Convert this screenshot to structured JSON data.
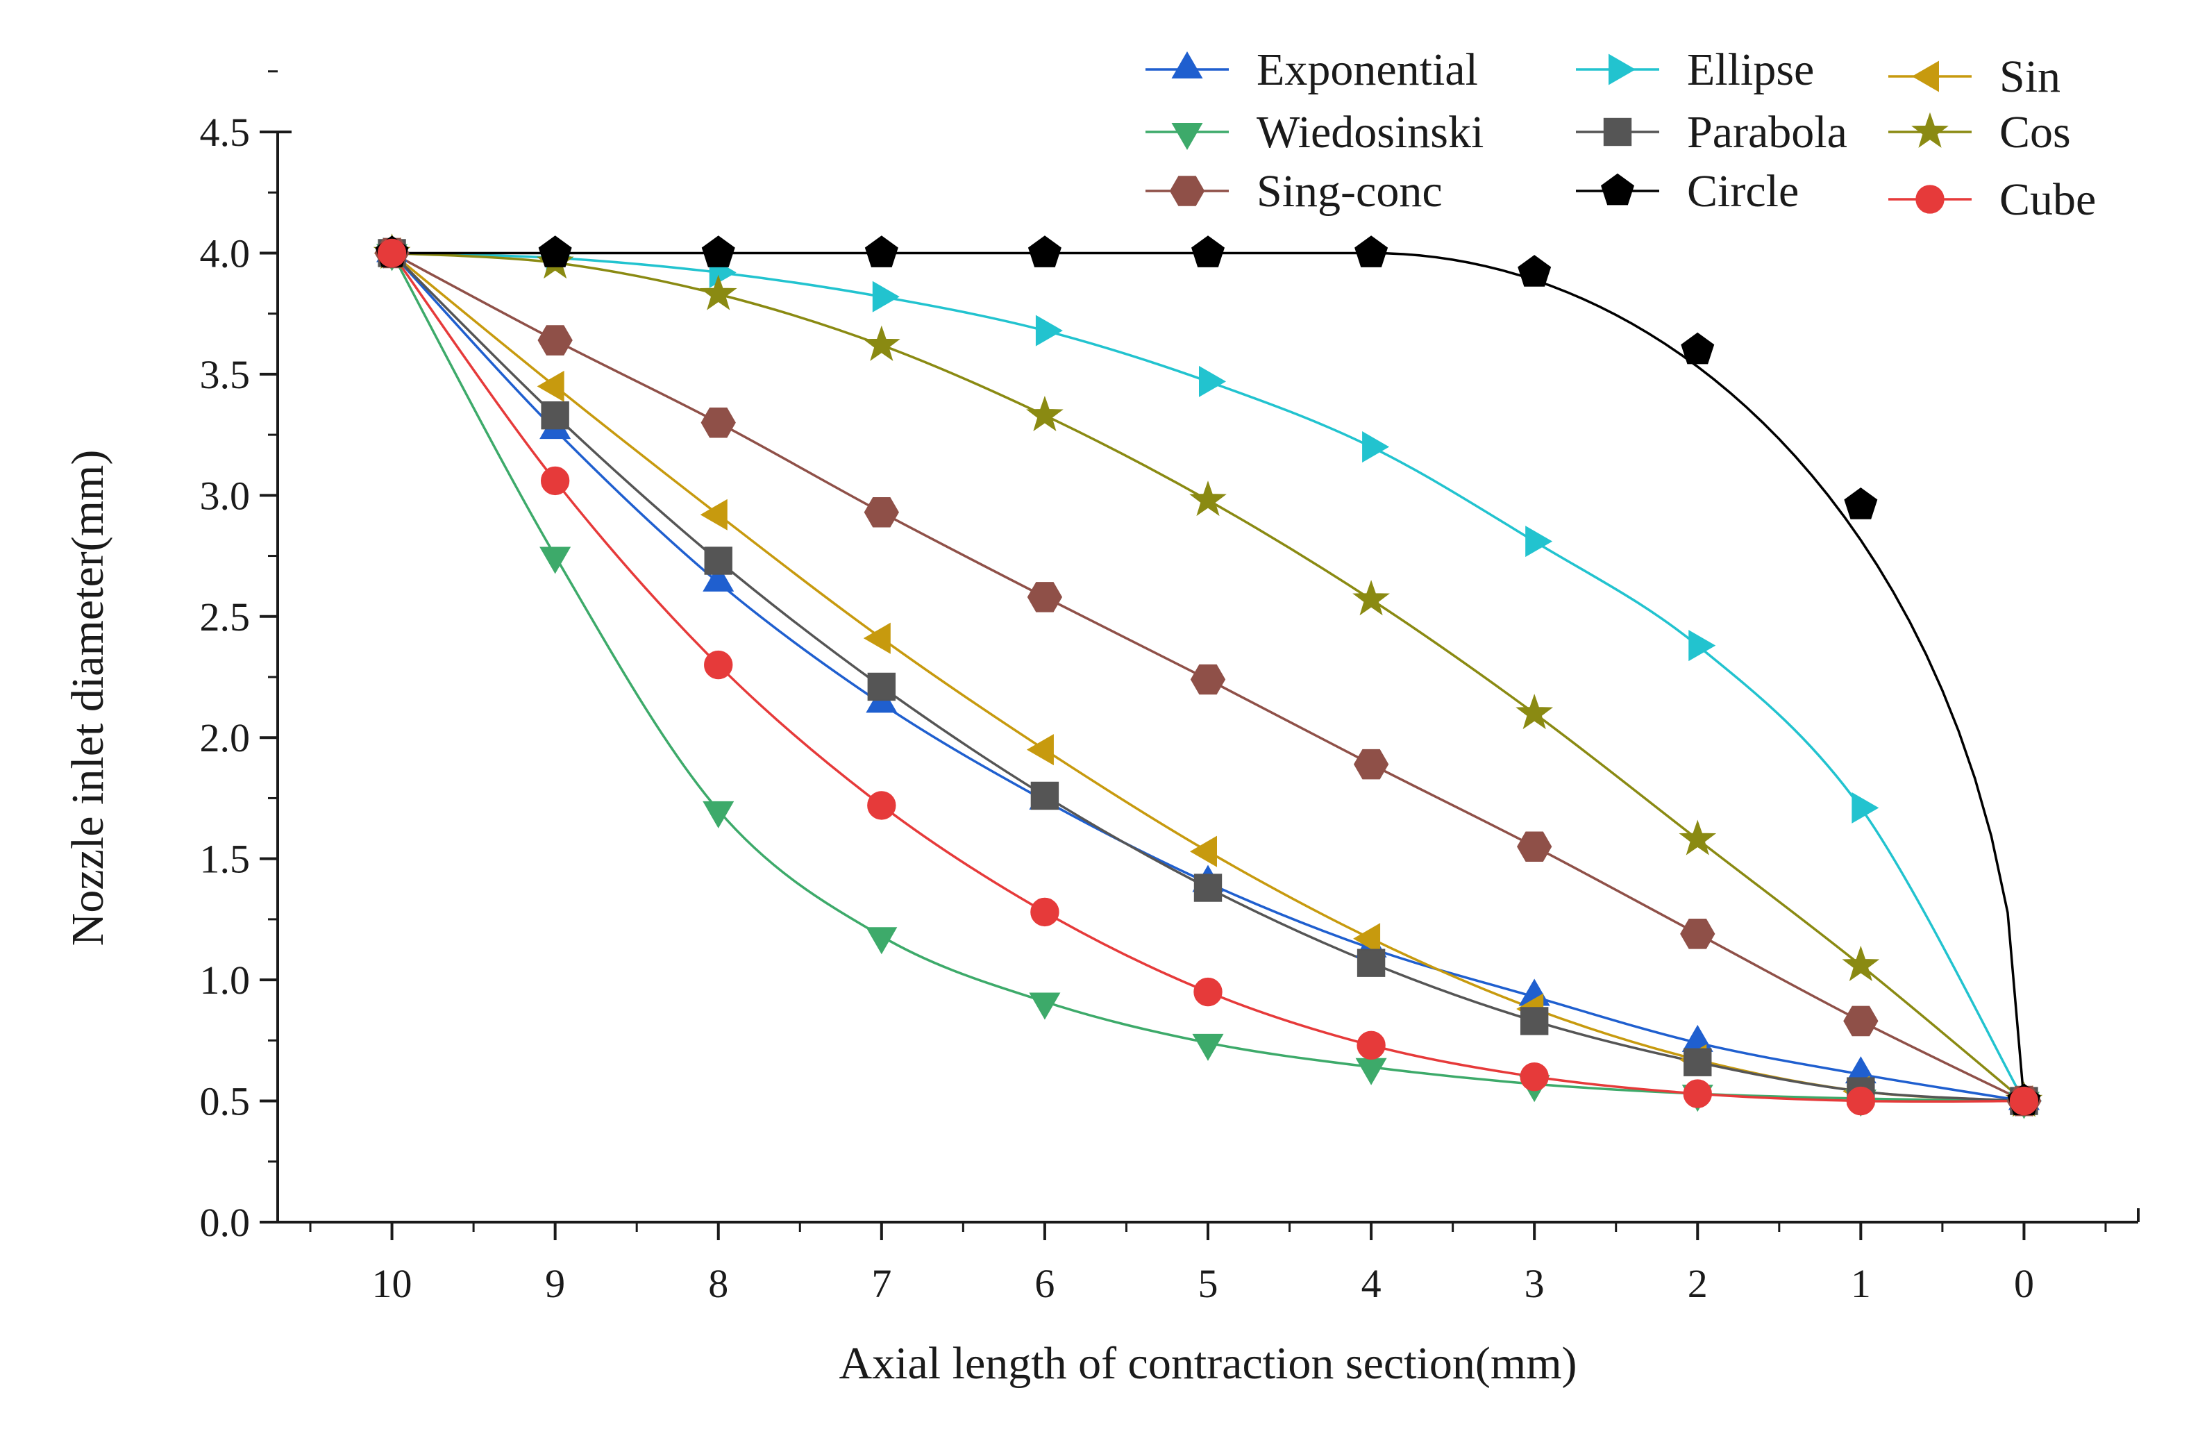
{
  "chart_data": {
    "type": "line",
    "xlabel": "Axial length of contraction section(mm)",
    "ylabel": "Nozzle inlet diameter(mm)",
    "x_reversed": true,
    "xlim": [
      10.7,
      -0.7
    ],
    "ylim": [
      0.0,
      4.5
    ],
    "x_ticks": [
      10,
      9,
      8,
      7,
      6,
      5,
      4,
      3,
      2,
      1,
      0
    ],
    "y_ticks": [
      0.0,
      0.5,
      1.0,
      1.5,
      2.0,
      2.5,
      3.0,
      3.5,
      4.0,
      4.5
    ],
    "y_tick_labels": [
      "0.0",
      "0.5",
      "1.0",
      "1.5",
      "2.0",
      "2.5",
      "3.0",
      "3.5",
      "4.0",
      "4.5"
    ],
    "grid": false,
    "legend_position": "top-right",
    "x": [
      10,
      9,
      8,
      7,
      6,
      5,
      4,
      3,
      2,
      1,
      0
    ],
    "series": [
      {
        "name": "Exponential",
        "color": "#1f5fcf",
        "marker": "triangle-up",
        "values": [
          4.0,
          3.27,
          2.64,
          2.14,
          1.74,
          1.4,
          1.13,
          0.93,
          0.74,
          0.61,
          0.5
        ]
      },
      {
        "name": "Ellipse",
        "color": "#22c3cf",
        "marker": "triangle-right",
        "values": [
          4.0,
          3.98,
          3.92,
          3.82,
          3.68,
          3.47,
          3.2,
          2.81,
          2.38,
          1.71,
          0.5
        ]
      },
      {
        "name": "Sin",
        "color": "#c79a0e",
        "marker": "triangle-left",
        "values": [
          4.0,
          3.45,
          2.92,
          2.41,
          1.95,
          1.53,
          1.17,
          0.88,
          0.67,
          0.54,
          0.5
        ]
      },
      {
        "name": "Wiedosinski",
        "color": "#3daa6a",
        "marker": "triangle-down",
        "values": [
          4.0,
          2.75,
          1.7,
          1.18,
          0.91,
          0.74,
          0.64,
          0.57,
          0.53,
          0.51,
          0.5
        ]
      },
      {
        "name": "Parabola",
        "color": "#555555",
        "marker": "square",
        "values": [
          4.0,
          3.33,
          2.73,
          2.21,
          1.76,
          1.38,
          1.07,
          0.83,
          0.66,
          0.54,
          0.5
        ]
      },
      {
        "name": "Cos",
        "color": "#8a8a12",
        "marker": "star",
        "values": [
          4.0,
          3.96,
          3.83,
          3.62,
          3.33,
          2.98,
          2.57,
          2.1,
          1.58,
          1.06,
          0.5
        ]
      },
      {
        "name": "Sing-conc",
        "color": "#8f5048",
        "marker": "hexagon",
        "values": [
          4.0,
          3.64,
          3.3,
          2.93,
          2.58,
          2.24,
          1.89,
          1.55,
          1.19,
          0.83,
          0.5
        ]
      },
      {
        "name": "Circle",
        "color": "#000000",
        "marker": "pentagon",
        "values": [
          4.0,
          4.0,
          4.0,
          4.0,
          4.0,
          4.0,
          4.0,
          3.92,
          3.6,
          2.96,
          0.5
        ]
      },
      {
        "name": "Cube",
        "color": "#e63a3a",
        "marker": "circle",
        "values": [
          4.0,
          3.06,
          2.3,
          1.72,
          1.28,
          0.95,
          0.73,
          0.6,
          0.53,
          0.5,
          0.5
        ]
      }
    ],
    "legend_layout": [
      [
        "Exponential",
        "Ellipse",
        "Sin"
      ],
      [
        "Wiedosinski",
        "Parabola",
        "Cos"
      ],
      [
        "Sing-conc",
        "Circle",
        "Cube"
      ]
    ]
  }
}
